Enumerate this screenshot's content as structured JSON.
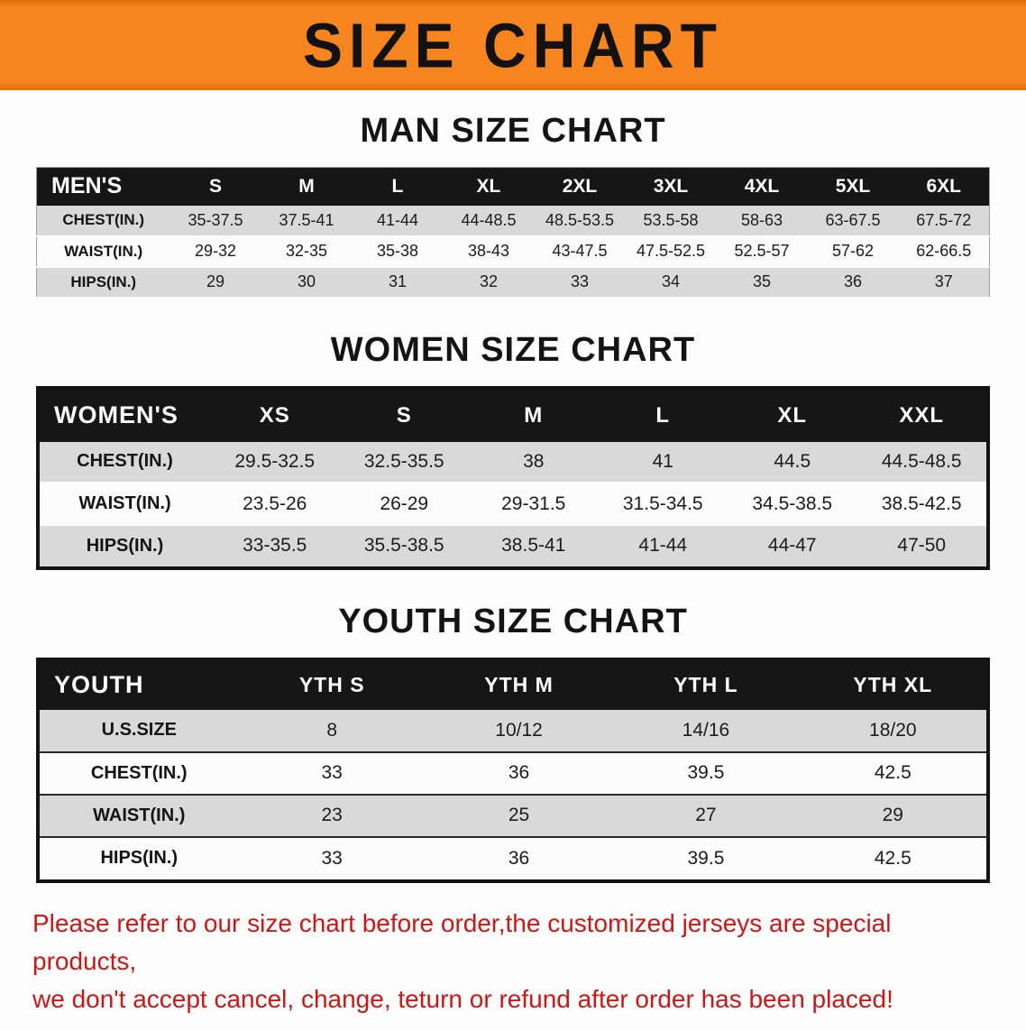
{
  "banner": {
    "title": "SIZE CHART",
    "bg_color": "#f6851f",
    "text_color": "#121212"
  },
  "sections": [
    {
      "heading": "MAN SIZE CHART",
      "table": {
        "header": [
          "MEN'S",
          "S",
          "M",
          "L",
          "XL",
          "2XL",
          "3XL",
          "4XL",
          "5XL",
          "6XL"
        ],
        "rows": [
          {
            "label": "CHEST(IN.)",
            "values": [
              "35-37.5",
              "37.5-41",
              "41-44",
              "44-48.5",
              "48.5-53.5",
              "53.5-58",
              "58-63",
              "63-67.5",
              "67.5-72"
            ]
          },
          {
            "label": "WAIST(IN.)",
            "values": [
              "29-32",
              "32-35",
              "35-38",
              "38-43",
              "43-47.5",
              "47.5-52.5",
              "52.5-57",
              "57-62",
              "62-66.5"
            ]
          },
          {
            "label": "HIPS(IN.)",
            "values": [
              "29",
              "30",
              "31",
              "32",
              "33",
              "34",
              "35",
              "36",
              "37"
            ]
          }
        ]
      }
    },
    {
      "heading": "WOMEN SIZE CHART",
      "table": {
        "header": [
          "WOMEN'S",
          "XS",
          "S",
          "M",
          "L",
          "XL",
          "XXL"
        ],
        "rows": [
          {
            "label": "CHEST(IN.)",
            "values": [
              "29.5-32.5",
              "32.5-35.5",
              "38",
              "41",
              "44.5",
              "44.5-48.5"
            ]
          },
          {
            "label": "WAIST(IN.)",
            "values": [
              "23.5-26",
              "26-29",
              "29-31.5",
              "31.5-34.5",
              "34.5-38.5",
              "38.5-42.5"
            ]
          },
          {
            "label": "HIPS(IN.)",
            "values": [
              "33-35.5",
              "35.5-38.5",
              "38.5-41",
              "41-44",
              "44-47",
              "47-50"
            ]
          }
        ]
      }
    },
    {
      "heading": "YOUTH SIZE CHART",
      "table": {
        "header": [
          "YOUTH",
          "YTH S",
          "YTH M",
          "YTH L",
          "YTH XL"
        ],
        "rows": [
          {
            "label": "U.S.SIZE",
            "values": [
              "8",
              "10/12",
              "14/16",
              "18/20"
            ]
          },
          {
            "label": "CHEST(IN.)",
            "values": [
              "33",
              "36",
              "39.5",
              "42.5"
            ]
          },
          {
            "label": "WAIST(IN.)",
            "values": [
              "23",
              "25",
              "27",
              "29"
            ]
          },
          {
            "label": "HIPS(IN.)",
            "values": [
              "33",
              "36",
              "39.5",
              "42.5"
            ]
          }
        ]
      }
    }
  ],
  "footer": {
    "line1": "Please refer to our size chart before order,the customized jerseys are special products,",
    "line2": "we don't accept cancel, change, teturn or refund after order has been placed!",
    "text_color": "#cd1717"
  }
}
